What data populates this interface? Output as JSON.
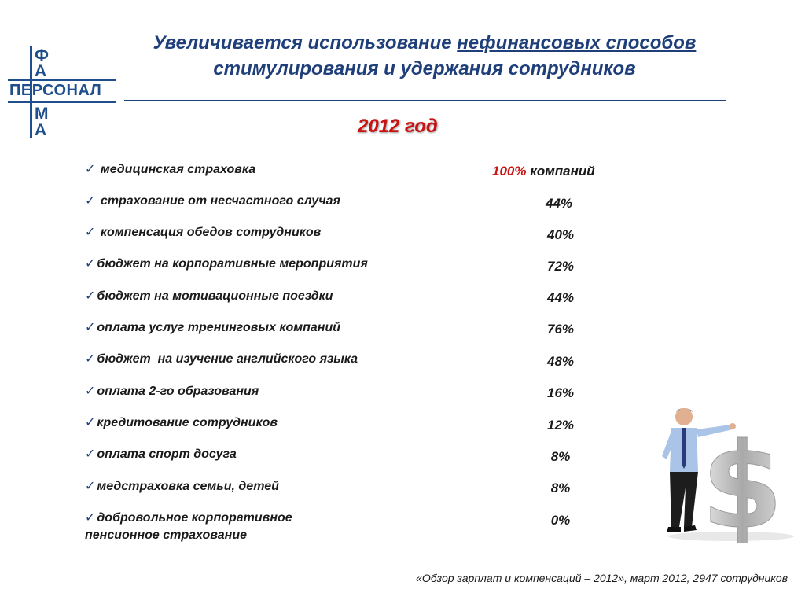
{
  "logo": {
    "top": "Ф",
    "second": "А",
    "middle": "ПЕРСОНАЛ",
    "fourth": "М",
    "fifth": "А"
  },
  "title": {
    "part1": "Увеличивается использование ",
    "underlined": "нефинансовых способов",
    "line2": "стимулирования и удержания сотрудников"
  },
  "year": "2012 год",
  "items": [
    {
      "label": "медицинская страховка",
      "value_red": "100%",
      "value": " компаний"
    },
    {
      "label": "страхование от несчастного случая",
      "value": "44%"
    },
    {
      "label": "компенсация обедов сотрудников",
      "value": "40%"
    },
    {
      "label": "бюджет на корпоративные мероприятия",
      "value": "72%"
    },
    {
      "label": "бюджет на мотивационные поездки",
      "value": "44%"
    },
    {
      "label": "оплата услуг тренинговых компаний",
      "value": "76%"
    },
    {
      "label": "бюджет  на изучение английского языка",
      "value": "48%"
    },
    {
      "label": "оплата 2-го образования",
      "value": "16%"
    },
    {
      "label": "кредитование сотрудников",
      "value": "12%"
    },
    {
      "label": "оплата спорт досуга",
      "value": "8%"
    },
    {
      "label": "медстраховка семьи, детей",
      "value": "8%"
    },
    {
      "label": "добровольное корпоративное",
      "label2": "пенсионное страхование",
      "value": "0%"
    }
  ],
  "source": "«Обзор зарплат и компенсаций – 2012», март 2012, 2947 сотрудников",
  "colors": {
    "accent": "#1f3f7a",
    "highlight": "#cc1111"
  },
  "icons": {
    "check": "check-icon",
    "illustration": "businessman-dollar-icon"
  }
}
